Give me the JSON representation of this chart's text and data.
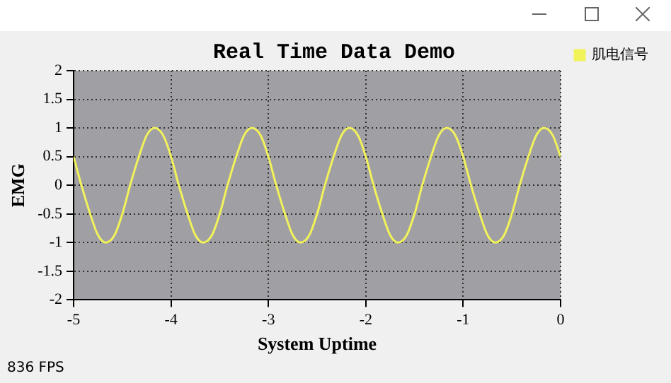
{
  "chart_data": {
    "type": "line",
    "title": "Real Time Data Demo",
    "xlabel": "System Uptime",
    "ylabel": "EMG",
    "series": [
      {
        "name": "肌电信号",
        "color": "#f2f25a",
        "x": [
          -5,
          -4.92,
          -4.83,
          -4.75,
          -4.67,
          -4.58,
          -4.5,
          -4.42,
          -4.33,
          -4.25,
          -4.17,
          -4.08,
          -4,
          -3.92,
          -3.83,
          -3.75,
          -3.67,
          -3.58,
          -3.5,
          -3.42,
          -3.33,
          -3.25,
          -3.17,
          -3.08,
          -3,
          -2.92,
          -2.83,
          -2.75,
          -2.67,
          -2.58,
          -2.5,
          -2.42,
          -2.33,
          -2.25,
          -2.17,
          -2.08,
          -2,
          -1.92,
          -1.83,
          -1.75,
          -1.67,
          -1.58,
          -1.5,
          -1.42,
          -1.33,
          -1.25,
          -1.17,
          -1.08,
          -1,
          -0.92,
          -0.83,
          -0.75,
          -0.67,
          -0.58,
          -0.5,
          -0.42,
          -0.33,
          -0.25,
          -0.17,
          -0.08,
          0
        ],
        "values": [
          0.5,
          0,
          -0.5,
          -0.87,
          -1,
          -0.87,
          -0.5,
          0,
          0.5,
          0.87,
          1,
          0.87,
          0.5,
          0,
          -0.5,
          -0.87,
          -1,
          -0.87,
          -0.5,
          0,
          0.5,
          0.87,
          1,
          0.87,
          0.5,
          0,
          -0.5,
          -0.87,
          -1,
          -0.87,
          -0.5,
          0,
          0.5,
          0.87,
          1,
          0.87,
          0.5,
          0,
          -0.5,
          -0.87,
          -1,
          -0.87,
          -0.5,
          0,
          0.5,
          0.87,
          1,
          0.87,
          0.5,
          0,
          -0.5,
          -0.87,
          -1,
          -0.87,
          -0.5,
          0,
          0.5,
          0.87,
          1,
          0.87,
          0.5
        ]
      }
    ],
    "xlim": [
      -5,
      0
    ],
    "xticks": [
      -5,
      -4,
      -3,
      -2,
      -1,
      0
    ],
    "ylim": [
      -2,
      2
    ],
    "yticks": [
      -2,
      -1.5,
      -1,
      -0.5,
      0,
      0.5,
      1,
      1.5,
      2
    ],
    "grid": true,
    "legend": "top right",
    "marker": "none",
    "line_style": "solid",
    "annotations": [
      "836 FPS"
    ]
  }
}
